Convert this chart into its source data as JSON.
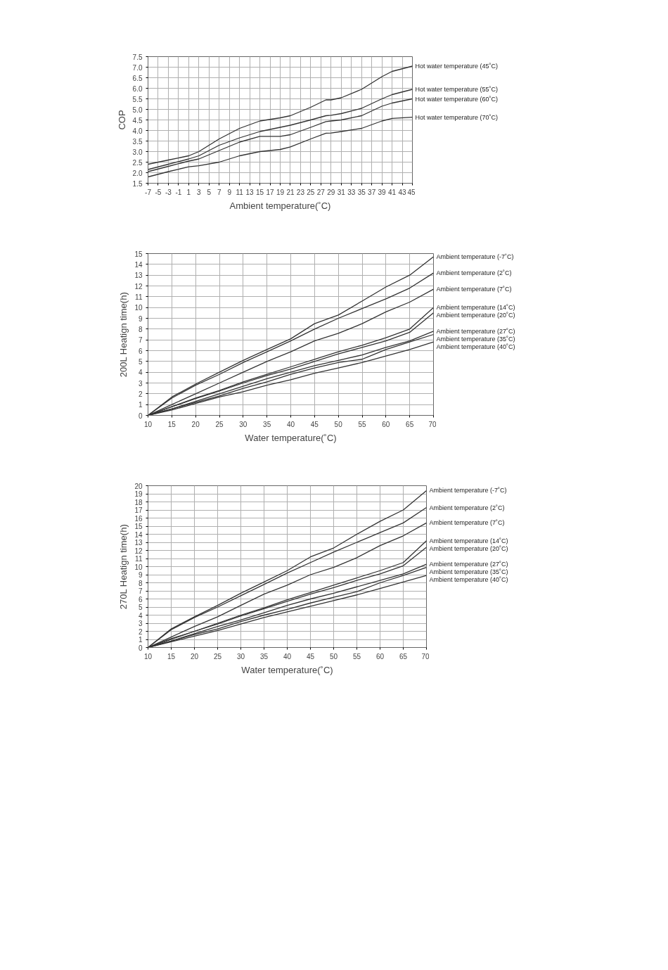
{
  "chart_data": [
    {
      "type": "line",
      "xlabel": "Ambient temperature(˚C)",
      "ylabel": "COP",
      "xlim": [
        -7,
        45
      ],
      "ylim": [
        1.5,
        7.5
      ],
      "xticks": [
        -7,
        -5,
        -3,
        -1,
        1,
        3,
        5,
        7,
        9,
        11,
        13,
        15,
        17,
        19,
        21,
        23,
        25,
        27,
        29,
        31,
        33,
        35,
        37,
        39,
        41,
        43,
        45
      ],
      "yticks": [
        {
          "value": 1.5,
          "label": "1.5"
        },
        {
          "value": 2,
          "label": "2.0"
        },
        {
          "value": 2.5,
          "label": "2.5"
        },
        {
          "value": 3,
          "label": "3.0"
        },
        {
          "value": 3.5,
          "label": "3.5"
        },
        {
          "value": 4,
          "label": "4.0"
        },
        {
          "value": 4.5,
          "label": "4.5"
        },
        {
          "value": 5,
          "label": "5.0"
        },
        {
          "value": 5.5,
          "label": "5.5"
        },
        {
          "value": 6,
          "label": "6.0"
        },
        {
          "value": 6.5,
          "label": "6.5"
        },
        {
          "value": 7,
          "label": "7.0"
        },
        {
          "value": 7.5,
          "label": "7.5"
        }
      ],
      "grid": true,
      "marker": "none",
      "line_style": "solid",
      "x": [
        -7,
        -3,
        1,
        3,
        7,
        11,
        15,
        19,
        21,
        25,
        28,
        29,
        31,
        35,
        39,
        41,
        45
      ],
      "series": [
        {
          "name": "Hot water temperature (45˚C)",
          "color": "#333333",
          "values": [
            2.4,
            2.6,
            2.8,
            3.0,
            3.6,
            4.1,
            4.45,
            4.6,
            4.7,
            5.1,
            5.45,
            5.45,
            5.55,
            5.95,
            6.55,
            6.8,
            7.05
          ]
        },
        {
          "name": "Hot water temperature (55˚C)",
          "color": "#333333",
          "values": [
            2.15,
            2.4,
            2.65,
            2.8,
            3.3,
            3.65,
            3.95,
            4.15,
            4.25,
            4.5,
            4.7,
            4.72,
            4.8,
            5.05,
            5.5,
            5.7,
            5.95
          ]
        },
        {
          "name": "Hot water temperature (60˚C)",
          "color": "#333333",
          "values": [
            2.05,
            2.3,
            2.55,
            2.65,
            3.05,
            3.45,
            3.72,
            3.72,
            3.8,
            4.15,
            4.42,
            4.45,
            4.5,
            4.7,
            5.15,
            5.3,
            5.5
          ]
        },
        {
          "name": "Hot water temperature (70˚C)",
          "color": "#333333",
          "values": [
            1.8,
            2.05,
            2.28,
            2.33,
            2.5,
            2.8,
            3.0,
            3.1,
            3.22,
            3.6,
            3.87,
            3.88,
            3.95,
            4.1,
            4.45,
            4.57,
            4.63
          ]
        }
      ]
    },
    {
      "type": "line",
      "xlabel": "Water temperature(˚C)",
      "ylabel": "200L Heatign time(h)",
      "xlim": [
        10,
        70
      ],
      "ylim": [
        0,
        15
      ],
      "xticks": [
        10,
        15,
        20,
        25,
        30,
        35,
        40,
        45,
        50,
        55,
        60,
        65,
        70
      ],
      "yticks": [
        0,
        1,
        2,
        3,
        4,
        5,
        6,
        7,
        8,
        9,
        10,
        11,
        12,
        13,
        14,
        15
      ],
      "grid": true,
      "marker": "none",
      "line_style": "solid",
      "x": [
        10,
        15,
        20,
        25,
        30,
        35,
        40,
        45,
        50,
        55,
        60,
        65,
        70
      ],
      "series": [
        {
          "name": "Ambient temperature (-7˚C)",
          "color": "#333333",
          "values": [
            0,
            1.7,
            2.9,
            4.0,
            5.1,
            6.1,
            7.1,
            8.5,
            9.3,
            10.6,
            11.9,
            13.0,
            14.7
          ]
        },
        {
          "name": "Ambient temperature (2˚C)",
          "color": "#333333",
          "values": [
            0,
            1.6,
            2.8,
            3.8,
            4.9,
            5.9,
            6.9,
            8.0,
            9.0,
            9.9,
            10.8,
            11.8,
            13.2
          ]
        },
        {
          "name": "Ambient temperature (7˚C)",
          "color": "#333333",
          "values": [
            0,
            1.0,
            2.0,
            3.0,
            4.0,
            5.0,
            5.9,
            6.9,
            7.6,
            8.5,
            9.6,
            10.5,
            11.7
          ]
        },
        {
          "name": "Ambient temperature (14˚C)",
          "color": "#333333",
          "values": [
            0,
            0.8,
            1.6,
            2.3,
            3.1,
            3.8,
            4.5,
            5.2,
            5.9,
            6.5,
            7.2,
            8.0,
            10.0
          ]
        },
        {
          "name": "Ambient temperature (20˚C)",
          "color": "#333333",
          "values": [
            0,
            0.8,
            1.55,
            2.25,
            3.0,
            3.7,
            4.3,
            5.0,
            5.7,
            6.3,
            6.9,
            7.7,
            9.5
          ]
        },
        {
          "name": "Ambient temperature (27˚C)",
          "color": "#333333",
          "values": [
            0,
            0.6,
            1.3,
            2.0,
            2.7,
            3.4,
            4.0,
            4.6,
            5.1,
            5.6,
            6.3,
            6.9,
            7.8
          ]
        },
        {
          "name": "Ambient temperature (35˚C)",
          "color": "#333333",
          "values": [
            0,
            0.6,
            1.2,
            1.8,
            2.5,
            3.1,
            3.8,
            4.4,
            4.9,
            5.2,
            6.1,
            6.8,
            7.5
          ]
        },
        {
          "name": "Ambient temperature (40˚C)",
          "color": "#333333",
          "values": [
            0,
            0.5,
            1.1,
            1.7,
            2.2,
            2.8,
            3.3,
            3.9,
            4.4,
            4.9,
            5.5,
            6.1,
            6.8
          ]
        }
      ]
    },
    {
      "type": "line",
      "xlabel": "Water temperature(˚C)",
      "ylabel": "270L Heatign time(h)",
      "xlim": [
        10,
        70
      ],
      "ylim": [
        0,
        20
      ],
      "xticks": [
        10,
        15,
        20,
        25,
        30,
        35,
        40,
        45,
        50,
        55,
        60,
        65,
        70
      ],
      "yticks": [
        0,
        1,
        2,
        3,
        4,
        5,
        6,
        7,
        8,
        9,
        10,
        11,
        12,
        13,
        14,
        15,
        16,
        17,
        18,
        19,
        20
      ],
      "grid": true,
      "marker": "none",
      "line_style": "solid",
      "x": [
        10,
        15,
        20,
        25,
        30,
        35,
        40,
        45,
        50,
        55,
        60,
        65,
        70
      ],
      "series": [
        {
          "name": "Ambient temperature (-7˚C)",
          "color": "#333333",
          "values": [
            0,
            2.3,
            3.8,
            5.2,
            6.7,
            8.1,
            9.5,
            11.2,
            12.3,
            14.0,
            15.6,
            17.0,
            19.4
          ]
        },
        {
          "name": "Ambient temperature (2˚C)",
          "color": "#333333",
          "values": [
            0,
            2.2,
            3.7,
            5.0,
            6.4,
            7.8,
            9.2,
            10.5,
            11.8,
            13.0,
            14.2,
            15.4,
            17.3
          ]
        },
        {
          "name": "Ambient temperature (7˚C)",
          "color": "#333333",
          "values": [
            0,
            1.3,
            2.6,
            3.8,
            5.2,
            6.6,
            7.7,
            9.0,
            9.9,
            11.1,
            12.6,
            13.8,
            15.4
          ]
        },
        {
          "name": "Ambient temperature (14˚C)",
          "color": "#333333",
          "values": [
            0,
            1.1,
            2.0,
            3.0,
            4.0,
            4.9,
            5.9,
            6.8,
            7.7,
            8.6,
            9.5,
            10.5,
            13.2
          ]
        },
        {
          "name": "Ambient temperature (20˚C)",
          "color": "#333333",
          "values": [
            0,
            1.0,
            2.0,
            2.9,
            3.9,
            4.8,
            5.7,
            6.6,
            7.4,
            8.3,
            9.1,
            10.1,
            12.4
          ]
        },
        {
          "name": "Ambient temperature (27˚C)",
          "color": "#333333",
          "values": [
            0,
            0.8,
            1.7,
            2.6,
            3.4,
            4.3,
            5.2,
            6.0,
            6.7,
            7.5,
            8.3,
            9.1,
            10.3
          ]
        },
        {
          "name": "Ambient temperature (35˚C)",
          "color": "#333333",
          "values": [
            0,
            0.8,
            1.6,
            2.3,
            3.2,
            4.0,
            4.7,
            5.5,
            6.2,
            6.9,
            8.0,
            8.9,
            9.9
          ]
        },
        {
          "name": "Ambient temperature (40˚C)",
          "color": "#333333",
          "values": [
            0,
            0.7,
            1.4,
            2.1,
            2.9,
            3.7,
            4.4,
            5.1,
            5.8,
            6.5,
            7.3,
            8.1,
            8.9
          ]
        }
      ]
    }
  ]
}
